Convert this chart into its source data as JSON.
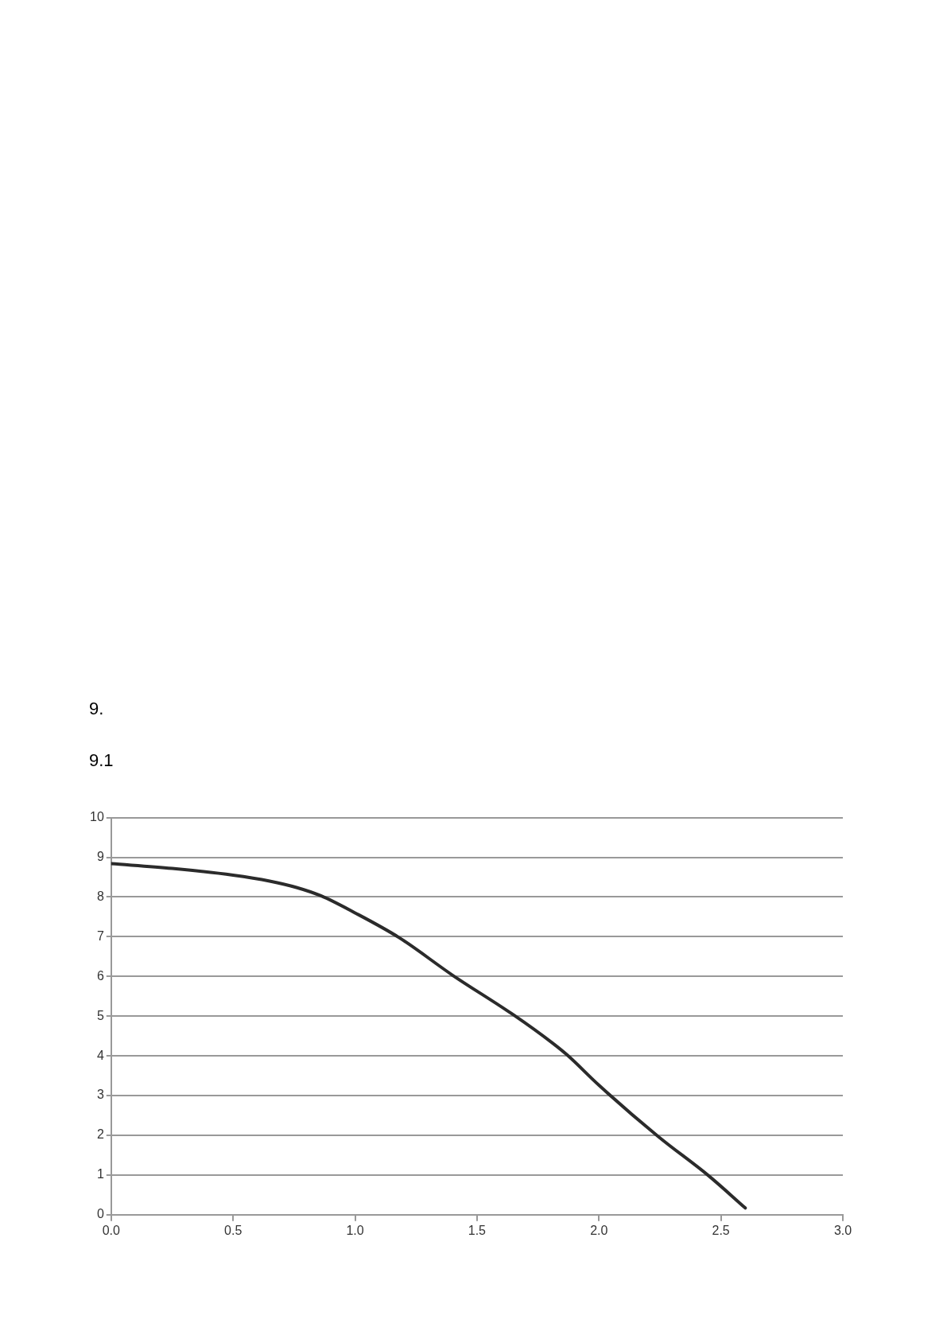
{
  "chart_data": {
    "type": "line",
    "annotations": [
      "9.",
      "9.1"
    ],
    "x": [
      0,
      0.25,
      0.5,
      0.65,
      0.76,
      0.86,
      1.0,
      1.18,
      1.4,
      1.65,
      1.81,
      1.87,
      2.0,
      2.245,
      2.45,
      2.6
    ],
    "series": [
      {
        "color": "#2b2b2b",
        "values": [
          8.84,
          8.72,
          8.55,
          8.4,
          8.24,
          8.03,
          7.6,
          6.98,
          6.03,
          5.03,
          4.32,
          4.02,
          3.26,
          1.96,
          0.98,
          0.17
        ]
      }
    ],
    "xlim": [
      0,
      3
    ],
    "xticks": [
      {
        "value": 0,
        "label": "0.0"
      },
      {
        "value": 0.5,
        "label": "0.5"
      },
      {
        "value": 1,
        "label": "1.0"
      },
      {
        "value": 1.5,
        "label": "1.5"
      },
      {
        "value": 2,
        "label": "2.0"
      },
      {
        "value": 2.5,
        "label": "2.5"
      },
      {
        "value": 3,
        "label": "3.0"
      }
    ],
    "ylim": [
      0,
      10
    ],
    "yticks": [
      0,
      1,
      2,
      3,
      4,
      5,
      6,
      7,
      8,
      9,
      10
    ],
    "grid": "y",
    "legend": false,
    "marker": "none",
    "line_style": "solid"
  }
}
